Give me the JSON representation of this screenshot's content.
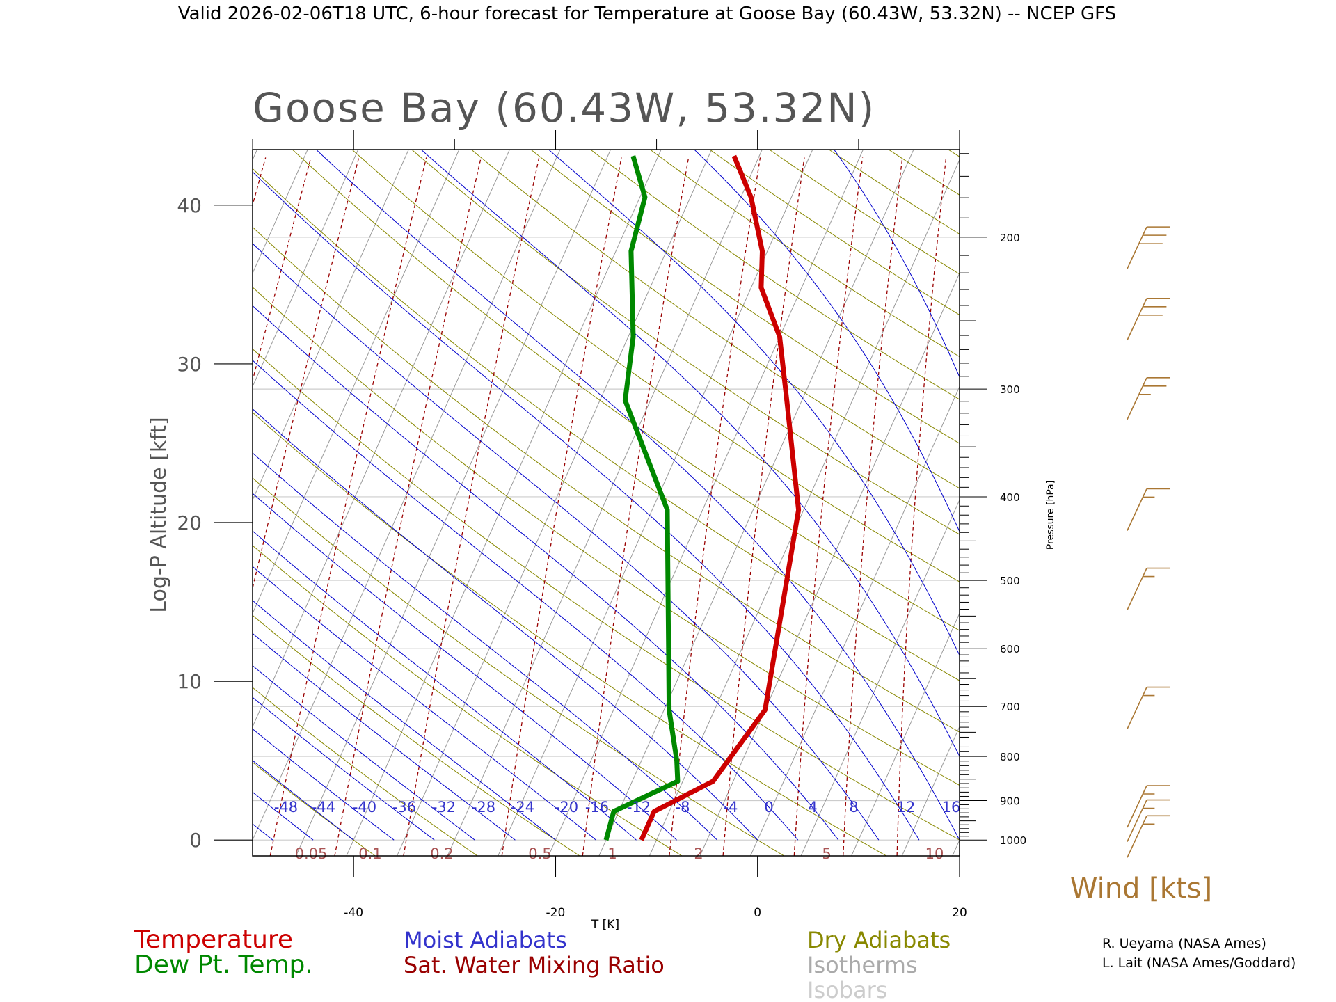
{
  "header": {
    "line": "Valid 2026-02-06T18 UTC, 6-hour forecast for Temperature at Goose Bay (60.43W, 53.32N) -- NCEP GFS"
  },
  "plot": {
    "title": "Goose Bay (60.43W, 53.32N)",
    "y_label": "Log-P Altitude [kft]",
    "x_label": "T [K]",
    "p_label": "Pressure [hPa]",
    "wind_label": "Wind [kts]"
  },
  "legend": {
    "temperature": "Temperature",
    "dewpoint": "Dew Pt. Temp.",
    "moist": "Moist Adiabats",
    "mixing": "Sat. Water Mixing Ratio",
    "dry": "Dry Adiabats",
    "isotherms": "Isotherms",
    "isobars": "Isobars"
  },
  "credits": {
    "line1": "R. Ueyama (NASA Ames)",
    "line2": "L. Lait (NASA Ames/Goddard)"
  },
  "colors": {
    "temperature": "#cc0000",
    "dewpoint": "#008800",
    "moist": "#0000cc",
    "mixing": "#990000",
    "dry": "#888800",
    "isotherm": "#999999",
    "isobar": "#cccccc",
    "wind": "#aa7733"
  },
  "chart_data": {
    "type": "line",
    "skew_c_per_kft": 0.7,
    "xlim": [
      -50,
      20
    ],
    "ylim": [
      -1,
      43.5
    ],
    "x_ticks": [
      -40,
      -20,
      0,
      20
    ],
    "y_ticks": [
      0,
      10,
      20,
      30,
      40
    ],
    "pressure_ticks": [
      200,
      300,
      400,
      500,
      600,
      700,
      800,
      900,
      1000
    ],
    "moist_adiabat_labels": [
      -48,
      -44,
      -40,
      -36,
      -32,
      -28,
      -24,
      -20,
      -16,
      -12,
      -8,
      -4,
      0,
      4,
      8,
      12,
      16
    ],
    "mixing_ratio_labels": [
      "0.05",
      "0.1",
      "0.2",
      "0.5",
      "1",
      "2",
      "5",
      "10"
    ],
    "series": [
      {
        "name": "Temperature",
        "points": [
          [
            0,
            -11.5
          ],
          [
            1.8,
            -11.5
          ],
          [
            3.7,
            -7.0
          ],
          [
            8.2,
            -5.0
          ],
          [
            20.8,
            -10.5
          ],
          [
            27.7,
            -16.5
          ],
          [
            31.7,
            -20.0
          ],
          [
            34.8,
            -24.0
          ],
          [
            37.1,
            -25.5
          ],
          [
            40.5,
            -29.0
          ],
          [
            43.1,
            -32.5
          ]
        ]
      },
      {
        "name": "Dew Pt. Temp.",
        "points": [
          [
            0,
            -15.0
          ],
          [
            1.8,
            -15.5
          ],
          [
            3.7,
            -10.5
          ],
          [
            5.0,
            -11.5
          ],
          [
            8.2,
            -14.5
          ],
          [
            15.9,
            -20.0
          ],
          [
            20.8,
            -23.5
          ],
          [
            27.7,
            -32.5
          ],
          [
            31.7,
            -34.5
          ],
          [
            37.1,
            -38.5
          ],
          [
            40.5,
            -39.5
          ],
          [
            43.1,
            -42.5
          ]
        ]
      }
    ],
    "wind_barbs": [
      {
        "alt": 0.3,
        "speed": 15
      },
      {
        "alt": 1.3,
        "speed": 15
      },
      {
        "alt": 2.2,
        "speed": 15
      },
      {
        "alt": 8.4,
        "speed": 15
      },
      {
        "alt": 15.9,
        "speed": 15
      },
      {
        "alt": 20.9,
        "speed": 15
      },
      {
        "alt": 27.9,
        "speed": 25
      },
      {
        "alt": 32.9,
        "speed": 30
      },
      {
        "alt": 37.4,
        "speed": 30
      }
    ]
  }
}
